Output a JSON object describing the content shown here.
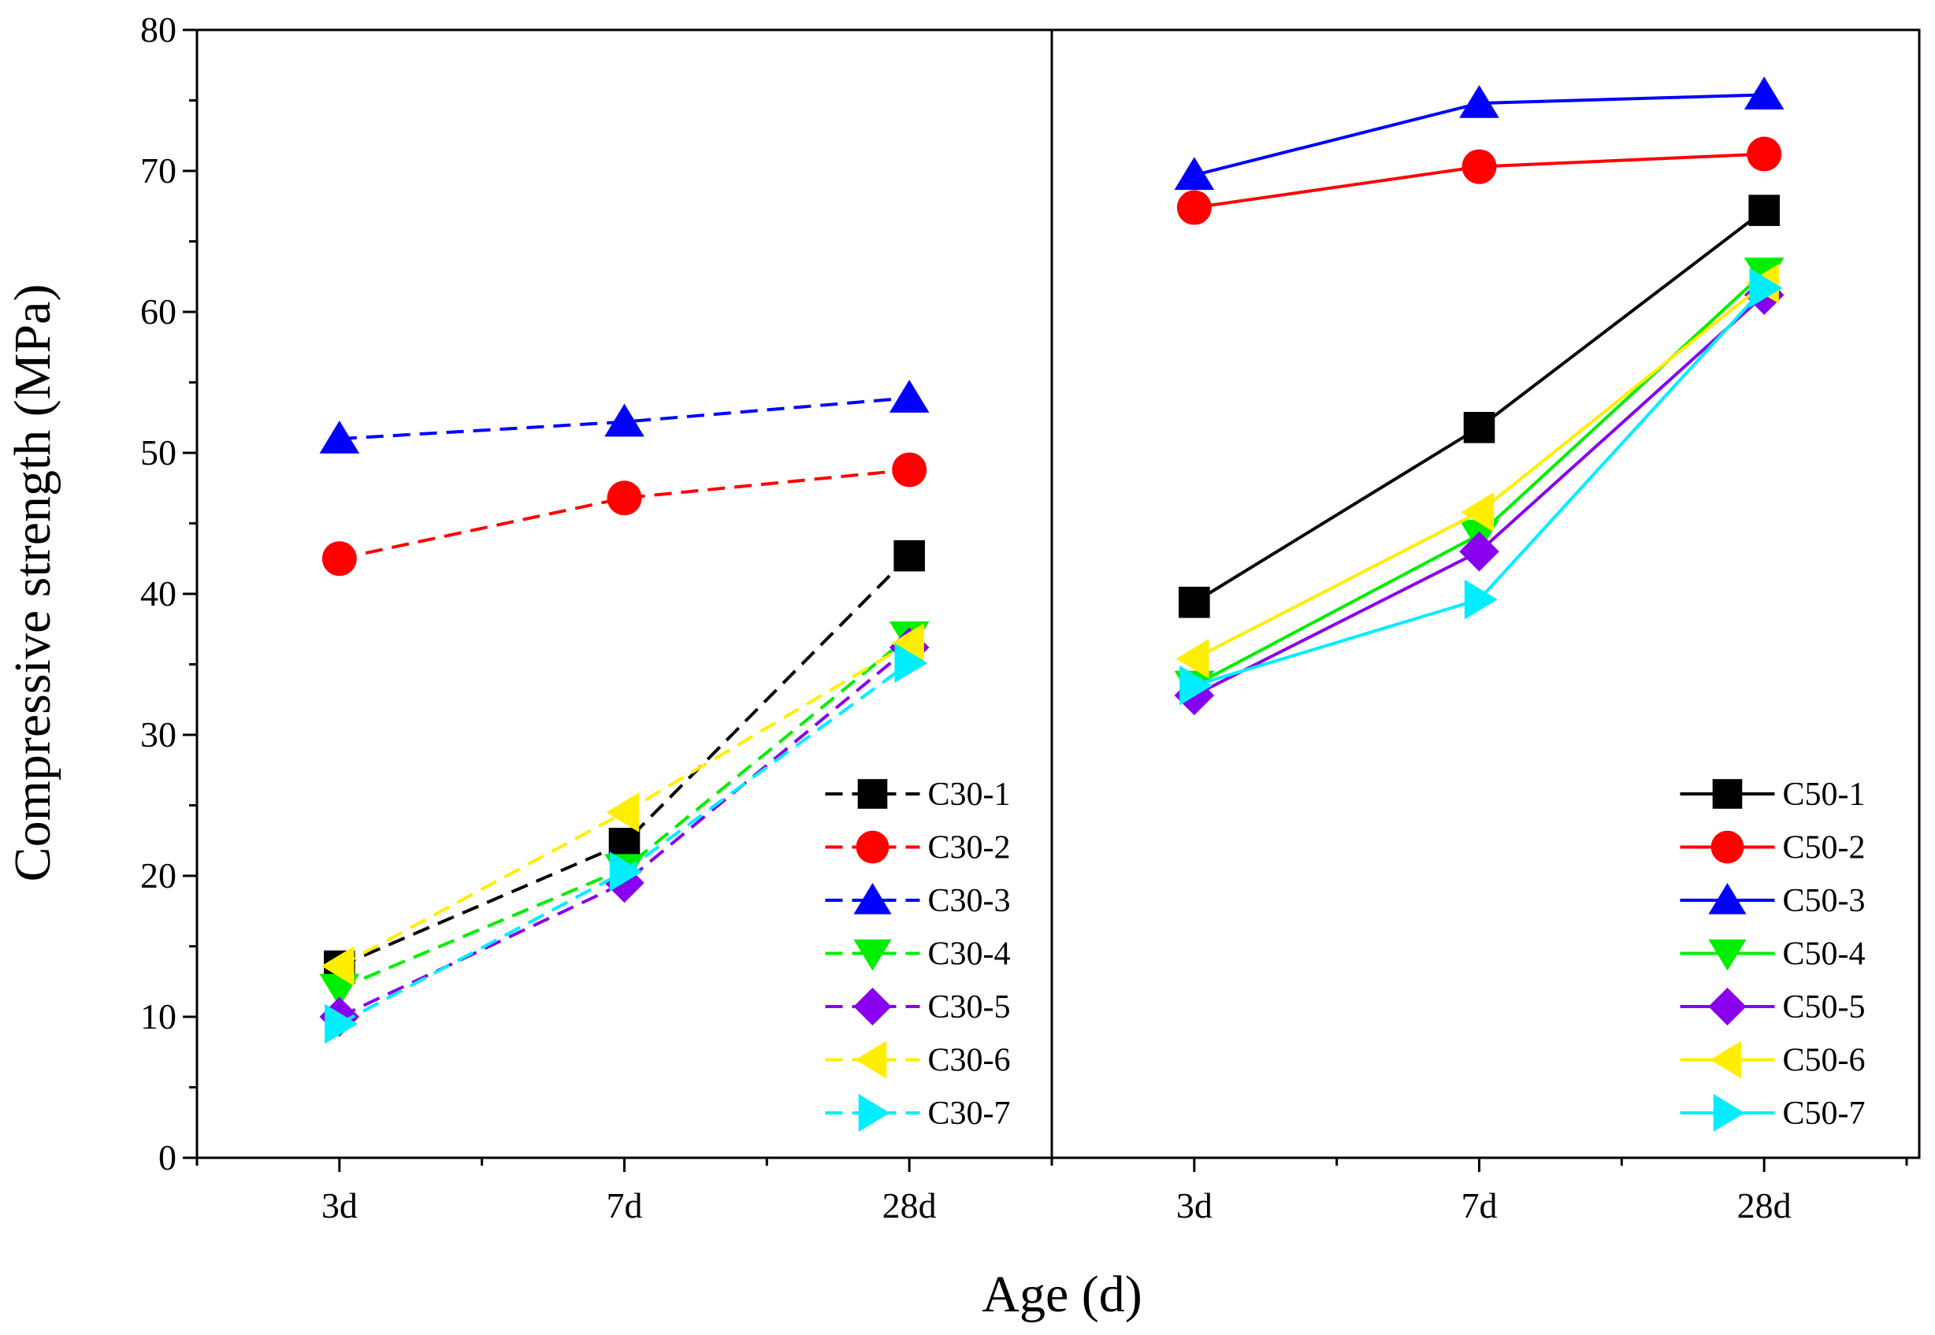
{
  "chart_data": {
    "type": "line",
    "title": "",
    "xlabel": "Age (d)",
    "ylabel": "Compressive strength (MPa)",
    "ylim": [
      0,
      80
    ],
    "yticks": [
      0,
      10,
      20,
      30,
      40,
      50,
      60,
      70,
      80
    ],
    "categories": [
      "3d",
      "7d",
      "28d"
    ],
    "grid": false,
    "panels": [
      {
        "name": "C30",
        "line_style": "dashed",
        "legend_position": "bottom-right",
        "series": [
          {
            "name": "C30-1",
            "marker": "square",
            "color": "#000000",
            "values": [
              13.6,
              22.3,
              42.7
            ]
          },
          {
            "name": "C30-2",
            "marker": "circle",
            "color": "#ff0000",
            "values": [
              42.5,
              46.8,
              48.8
            ]
          },
          {
            "name": "C30-3",
            "marker": "triangle-up",
            "color": "#0000ff",
            "values": [
              51.0,
              52.2,
              53.9
            ]
          },
          {
            "name": "C30-4",
            "marker": "triangle-down",
            "color": "#00ee00",
            "values": [
              12.0,
              20.5,
              37.0
            ]
          },
          {
            "name": "C30-5",
            "marker": "diamond",
            "color": "#8800ee",
            "values": [
              10.0,
              19.5,
              36.2
            ]
          },
          {
            "name": "C30-6",
            "marker": "triangle-left",
            "color": "#ffee00",
            "values": [
              13.6,
              24.5,
              36.5
            ]
          },
          {
            "name": "C30-7",
            "marker": "triangle-right",
            "color": "#00eeff",
            "values": [
              9.5,
              20.3,
              35.1
            ]
          }
        ]
      },
      {
        "name": "C50",
        "line_style": "solid",
        "legend_position": "bottom-right",
        "series": [
          {
            "name": "C50-1",
            "marker": "square",
            "color": "#000000",
            "values": [
              39.4,
              51.8,
              67.2
            ]
          },
          {
            "name": "C50-2",
            "marker": "circle",
            "color": "#ff0000",
            "values": [
              67.4,
              70.3,
              71.2
            ]
          },
          {
            "name": "C50-3",
            "marker": "triangle-up",
            "color": "#0000ff",
            "values": [
              69.7,
              74.8,
              75.4
            ]
          },
          {
            "name": "C50-4",
            "marker": "triangle-down",
            "color": "#00ee00",
            "values": [
              33.5,
              44.2,
              62.8
            ]
          },
          {
            "name": "C50-5",
            "marker": "diamond",
            "color": "#8800ee",
            "values": [
              32.8,
              43.0,
              61.2
            ]
          },
          {
            "name": "C50-6",
            "marker": "triangle-left",
            "color": "#ffee00",
            "values": [
              35.4,
              45.8,
              62.0
            ]
          },
          {
            "name": "C50-7",
            "marker": "triangle-right",
            "color": "#00eeff",
            "values": [
              33.5,
              39.6,
              61.7
            ]
          }
        ]
      }
    ]
  }
}
